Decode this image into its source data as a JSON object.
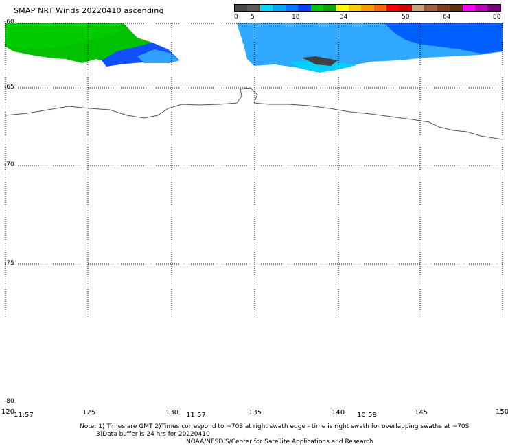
{
  "title": "SMAP NRT Winds 20220410 ascending",
  "legend": {
    "ticks": [
      "0",
      "5",
      "18",
      "34",
      "50",
      "64",
      "80"
    ],
    "colors": [
      "#4a4a4a",
      "#5c5c5c",
      "#00d8ff",
      "#00a8ff",
      "#0078ff",
      "#0040ff",
      "#00c800",
      "#00a800",
      "#ffff00",
      "#ffcc00",
      "#ff9900",
      "#ff6600",
      "#ff0000",
      "#d40000",
      "#c8a080",
      "#a06040",
      "#804020",
      "#603010",
      "#ff00ff",
      "#c000c0",
      "#800080"
    ]
  },
  "map": {
    "lat_labels": [
      "-60",
      "-65",
      "-70",
      "-75",
      "-80"
    ],
    "lon_labels": [
      "120",
      "125",
      "130",
      "135",
      "140",
      "145",
      "150"
    ],
    "time_labels": [
      "11:57",
      "11:57",
      "10:58"
    ]
  },
  "notes": {
    "line1": "Note: 1) Times are GMT 2)Times correspond to ~70S at right swath edge - time is right swath for overlapping swaths at ~70S",
    "line2": "3)Data buffer is 24 hrs for 20220410"
  },
  "credit": "NOAA/NESDIS/Center for Satellite Applications and Research"
}
